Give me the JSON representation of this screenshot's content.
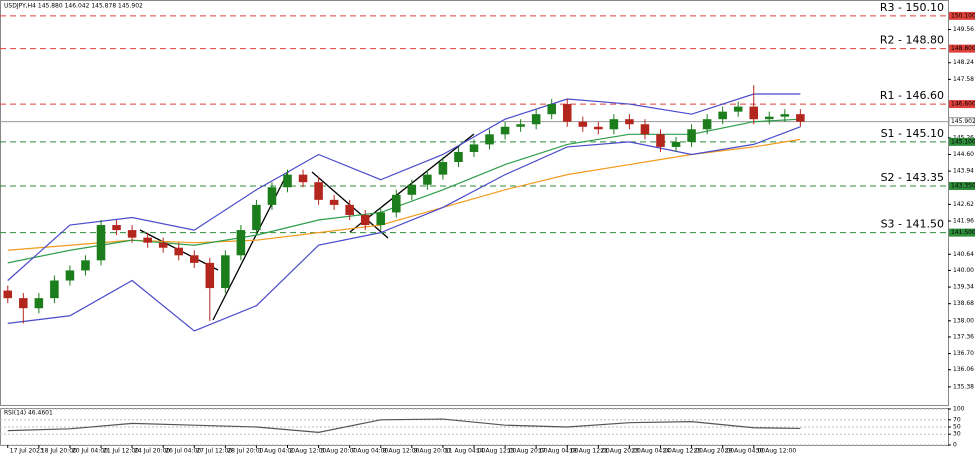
{
  "chart_data": {
    "type": "candlestick",
    "title": "USDJPY,H4  145.880 146.042 145.878 145.902",
    "up_color": "#1b7d1b",
    "down_color": "#b3261e",
    "xlim": [
      -0.5,
      60.5
    ],
    "ylim": [
      134.66,
      150.69
    ],
    "candles": {
      "open": [
        139.2,
        138.9,
        138.5,
        138.9,
        139.6,
        140.0,
        140.4,
        141.8,
        141.6,
        141.3,
        141.1,
        140.9,
        140.6,
        140.3,
        139.3,
        140.6,
        141.6,
        142.6,
        143.3,
        143.8,
        143.5,
        142.8,
        142.6,
        142.2,
        141.8,
        142.3,
        143.0,
        143.4,
        143.8,
        144.3,
        144.7,
        145.0,
        145.4,
        145.7,
        145.8,
        146.2,
        146.6,
        145.9,
        145.7,
        145.6,
        146.0,
        145.8,
        145.4,
        144.9,
        145.1,
        145.6,
        146.0,
        146.3,
        146.5,
        146.0,
        146.1,
        146.2
      ],
      "high": [
        139.4,
        139.1,
        139.1,
        139.8,
        140.2,
        140.6,
        142.0,
        142.0,
        141.8,
        141.5,
        141.3,
        141.1,
        140.8,
        140.5,
        140.8,
        141.8,
        142.8,
        143.5,
        144.0,
        144.0,
        143.7,
        143.0,
        142.8,
        142.4,
        142.5,
        143.2,
        143.6,
        144.0,
        144.5,
        144.9,
        145.2,
        145.6,
        145.9,
        146.0,
        146.4,
        146.8,
        146.8,
        146.1,
        145.9,
        146.2,
        146.2,
        146.0,
        145.6,
        145.3,
        145.8,
        146.2,
        146.5,
        146.7,
        147.35,
        146.3,
        146.4,
        146.4
      ],
      "low": [
        138.7,
        137.9,
        138.3,
        138.7,
        139.4,
        139.8,
        140.2,
        141.4,
        141.1,
        140.9,
        140.7,
        140.4,
        140.1,
        138.0,
        139.1,
        140.4,
        141.4,
        142.4,
        143.1,
        143.3,
        142.6,
        142.4,
        142.0,
        141.6,
        141.6,
        142.1,
        142.8,
        143.2,
        143.6,
        144.1,
        144.5,
        144.8,
        145.2,
        145.5,
        145.6,
        146.0,
        145.7,
        145.5,
        145.4,
        145.4,
        145.6,
        145.2,
        144.7,
        144.7,
        144.9,
        145.4,
        145.8,
        146.1,
        145.8,
        145.8,
        145.9,
        145.7
      ],
      "close": [
        138.9,
        138.5,
        138.9,
        139.6,
        140.0,
        140.4,
        141.8,
        141.6,
        141.3,
        141.1,
        140.9,
        140.6,
        140.3,
        139.3,
        140.6,
        141.6,
        142.6,
        143.3,
        143.8,
        143.5,
        142.8,
        142.6,
        142.2,
        141.8,
        142.3,
        143.0,
        143.4,
        143.8,
        144.3,
        144.7,
        145.0,
        145.4,
        145.7,
        145.8,
        146.2,
        146.6,
        145.9,
        145.7,
        145.6,
        146.0,
        145.8,
        145.4,
        144.9,
        145.1,
        145.6,
        146.0,
        146.3,
        146.5,
        146.0,
        146.1,
        146.2,
        145.9
      ]
    },
    "lines": [
      {
        "color": "#f39a1e",
        "x": [
          0,
          4,
          8,
          12,
          16,
          20,
          24,
          28,
          32,
          36,
          40,
          44,
          48,
          51
        ],
        "values": [
          140.8,
          141.0,
          141.2,
          141.1,
          141.2,
          141.5,
          141.8,
          142.5,
          143.2,
          143.8,
          144.2,
          144.6,
          144.9,
          145.2
        ]
      },
      {
        "color": "#2e9e4a",
        "x": [
          0,
          4,
          8,
          12,
          16,
          20,
          24,
          28,
          32,
          36,
          40,
          44,
          48,
          51
        ],
        "values": [
          140.3,
          140.8,
          141.2,
          141.0,
          141.4,
          142.0,
          142.3,
          143.2,
          144.2,
          145.0,
          145.4,
          145.4,
          145.9,
          146.0
        ]
      },
      {
        "color": "#4b4bcc",
        "x": [
          0,
          4,
          8,
          12,
          16,
          20,
          24,
          28,
          32,
          36,
          40,
          44,
          48,
          51
        ],
        "values": [
          139.6,
          141.8,
          142.1,
          141.6,
          143.2,
          144.6,
          143.6,
          144.6,
          146.0,
          146.8,
          146.6,
          146.2,
          147.0,
          147.0
        ]
      },
      {
        "color": "#4b4bcc",
        "x": [
          0,
          4,
          8,
          12,
          16,
          20,
          24,
          28,
          32,
          36,
          40,
          44,
          48,
          51
        ],
        "values": [
          137.9,
          138.2,
          139.6,
          137.6,
          138.6,
          141.0,
          141.5,
          142.5,
          143.8,
          144.9,
          145.1,
          144.6,
          145.0,
          145.7
        ]
      }
    ],
    "levels": [
      {
        "label": "R3 - 150.10",
        "value": 150.1,
        "axis_label": "150.100",
        "color": "#e0403a"
      },
      {
        "label": "R2 - 148.80",
        "value": 148.8,
        "axis_label": "148.800",
        "color": "#e0403a"
      },
      {
        "label": "R1 - 146.60",
        "value": 146.6,
        "axis_label": "146.600",
        "color": "#e0403a"
      },
      {
        "label": "S1 - 145.10",
        "value": 145.1,
        "axis_label": "145.100",
        "color": "#2e8b3a"
      },
      {
        "label": "S2 - 143.35",
        "value": 143.35,
        "axis_label": "143.350",
        "color": "#2e8b3a"
      },
      {
        "label": "S3 - 141.50",
        "value": 141.5,
        "axis_label": "141.500",
        "color": "#2e8b3a"
      }
    ],
    "current_price": {
      "value": 145.902,
      "label": "145.902",
      "color": "#9a9a9a"
    },
    "yticks": [
      {
        "value": 135.38,
        "label": "135.38"
      },
      {
        "value": 136.06,
        "label": "136.06"
      },
      {
        "value": 136.7,
        "label": "136.70"
      },
      {
        "value": 137.36,
        "label": "137.36"
      },
      {
        "value": 138.0,
        "label": "138.00"
      },
      {
        "value": 138.68,
        "label": "138.68"
      },
      {
        "value": 139.34,
        "label": "139.34"
      },
      {
        "value": 140.0,
        "label": "140.00"
      },
      {
        "value": 140.64,
        "label": "140.64"
      },
      {
        "value": 141.96,
        "label": "141.96"
      },
      {
        "value": 142.62,
        "label": "142.62"
      },
      {
        "value": 143.94,
        "label": "143.94"
      },
      {
        "value": 144.6,
        "label": "144.60"
      },
      {
        "value": 145.26,
        "label": "145.26"
      },
      {
        "value": 147.58,
        "label": "147.58"
      },
      {
        "value": 148.24,
        "label": "148.24"
      },
      {
        "value": 149.56,
        "label": "149.56"
      }
    ],
    "xticks": [
      {
        "value": 0,
        "label": "17 Jul 2023"
      },
      {
        "value": 2,
        "label": "18 Jul 20:00"
      },
      {
        "value": 4,
        "label": "20 Jul 04:00"
      },
      {
        "value": 6,
        "label": "21 Jul 12:00"
      },
      {
        "value": 8,
        "label": "24 Jul 20:00"
      },
      {
        "value": 10,
        "label": "26 Jul 04:00"
      },
      {
        "value": 12,
        "label": "27 Jul 12:00"
      },
      {
        "value": 14,
        "label": "28 Jul 20:00"
      },
      {
        "value": 16,
        "label": "1 Aug 04:00"
      },
      {
        "value": 18,
        "label": "2 Aug 12:00"
      },
      {
        "value": 20,
        "label": "3 Aug 20:00"
      },
      {
        "value": 22,
        "label": "7 Aug 04:00"
      },
      {
        "value": 24,
        "label": "8 Aug 12:00"
      },
      {
        "value": 26,
        "label": "9 Aug 20:00"
      },
      {
        "value": 28,
        "label": "11 Aug 04:00"
      },
      {
        "value": 30,
        "label": "14 Aug 12:00"
      },
      {
        "value": 32,
        "label": "15 Aug 20:00"
      },
      {
        "value": 34,
        "label": "17 Aug 04:00"
      },
      {
        "value": 36,
        "label": "18 Aug 12:00"
      },
      {
        "value": 38,
        "label": "21 Aug 20:00"
      },
      {
        "value": 40,
        "label": "23 Aug 04:00"
      },
      {
        "value": 42,
        "label": "24 Aug 12:00"
      },
      {
        "value": 44,
        "label": "25 Aug 20:00"
      },
      {
        "value": 46,
        "label": "29 Aug 04:00"
      },
      {
        "value": 48,
        "label": "30 Aug 12:00"
      }
    ],
    "rsi": {
      "label": "RSI(14) 46.4601",
      "color": "#555555",
      "ylim": [
        0,
        100
      ],
      "yticks": [
        0,
        30,
        50,
        70,
        100
      ],
      "x": [
        0,
        4,
        8,
        12,
        16,
        20,
        24,
        28,
        32,
        36,
        40,
        44,
        48,
        51
      ],
      "values": [
        40,
        45,
        60,
        55,
        50,
        35,
        70,
        72,
        55,
        50,
        62,
        65,
        48,
        46
      ]
    }
  }
}
